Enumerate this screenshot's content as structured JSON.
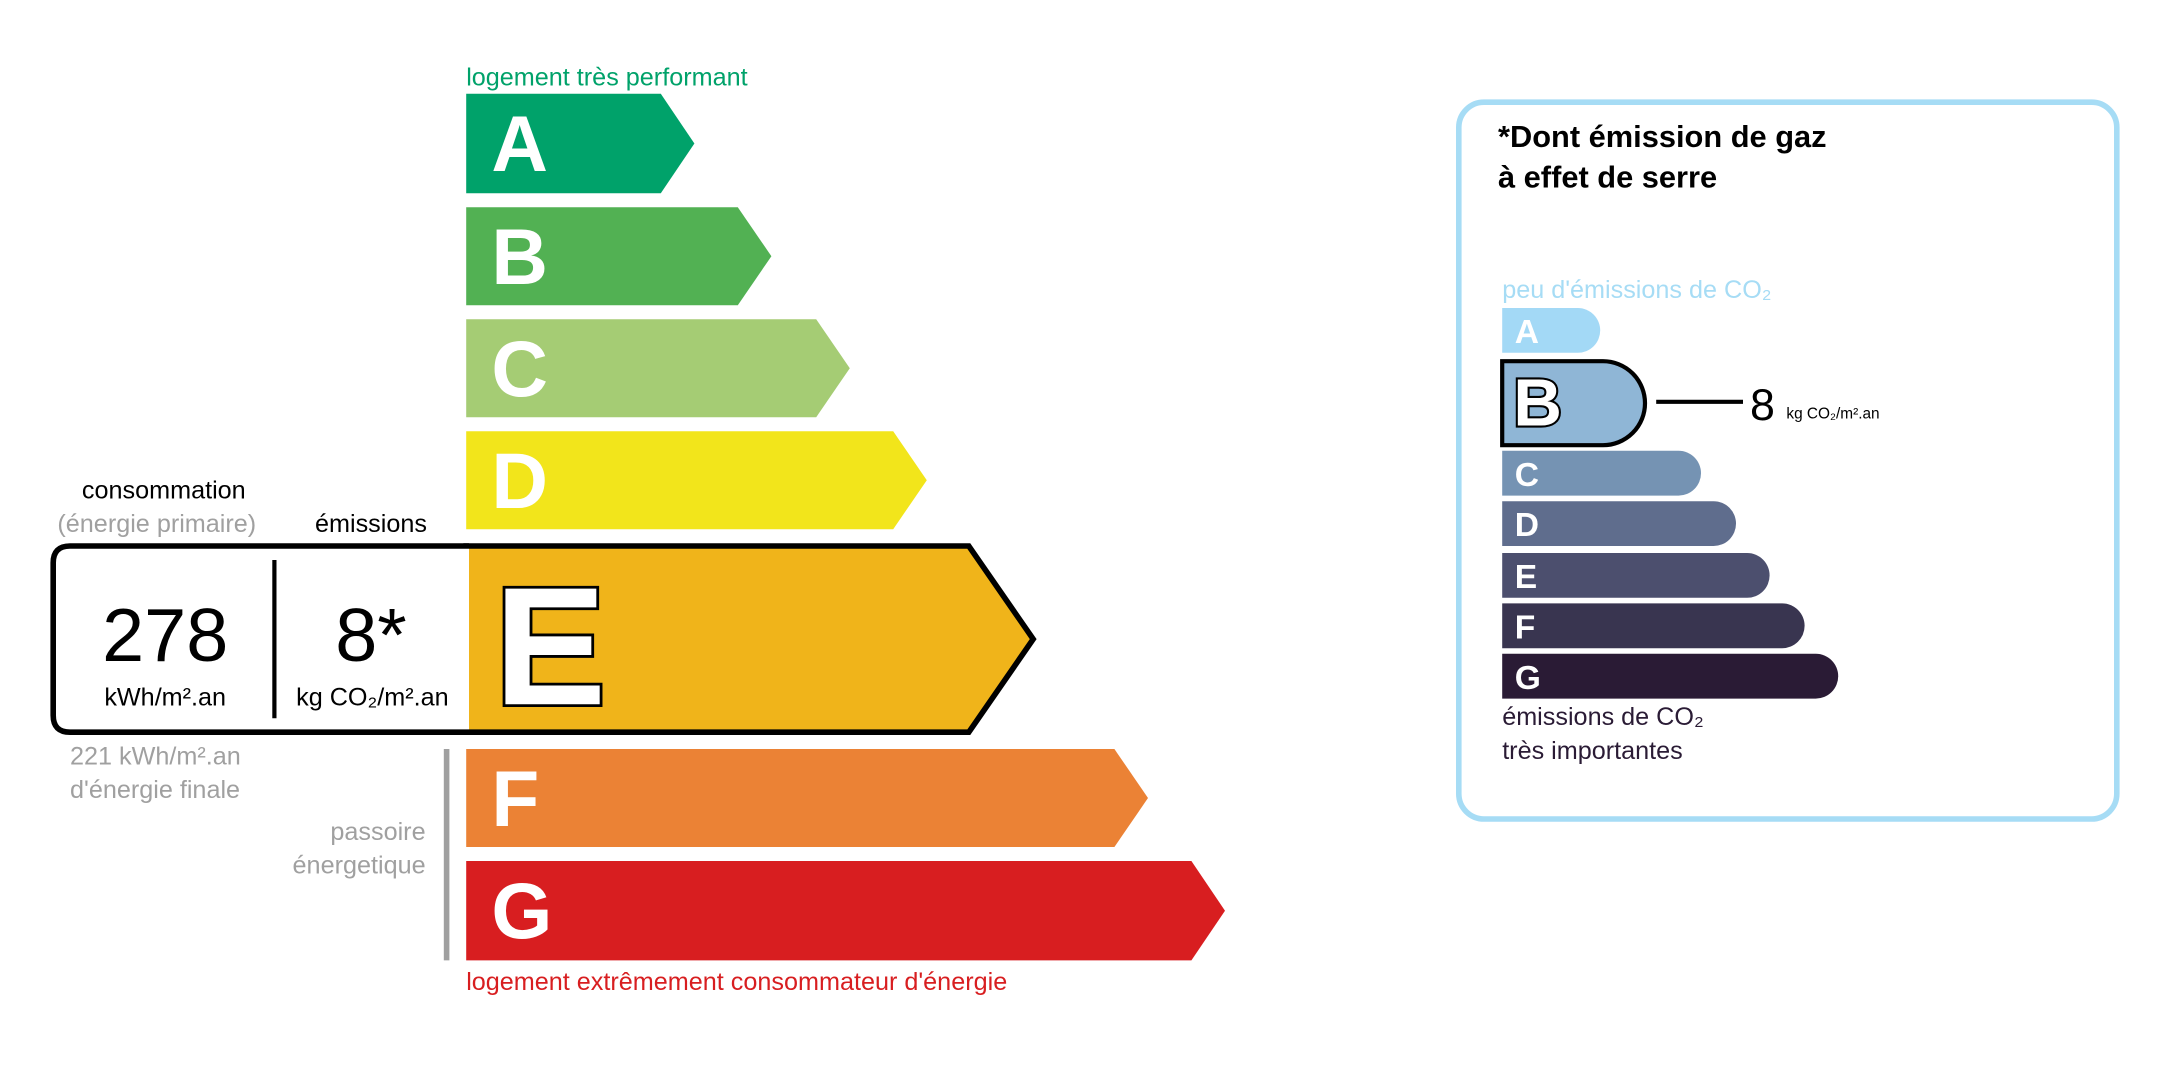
{
  "energy": {
    "top_label": "logement très performant",
    "bottom_label": "logement extrêmement consommateur d'énergie",
    "top_label_color": "#00a26a",
    "bottom_label_color": "#d81e20",
    "classes": [
      {
        "letter": "A",
        "color": "#00a26a"
      },
      {
        "letter": "B",
        "color": "#52b153"
      },
      {
        "letter": "C",
        "color": "#a5cc74"
      },
      {
        "letter": "D",
        "color": "#f2e51b"
      },
      {
        "letter": "E",
        "color": "#f0b41a"
      },
      {
        "letter": "F",
        "color": "#eb8235"
      },
      {
        "letter": "G",
        "color": "#d81e20"
      }
    ],
    "current_class": "E",
    "consumption_header": "consommation",
    "consumption_subheader": "(énergie primaire)",
    "emissions_header": "émissions",
    "consumption_value": "278",
    "consumption_unit": "kWh/m².an",
    "emissions_value": "8*",
    "emissions_unit": "kg CO₂/m².an",
    "final_energy_line1": "221 kWh/m².an",
    "final_energy_line2": "d'énergie finale",
    "passoire_line1": "passoire",
    "passoire_line2": "énergetique"
  },
  "ghg": {
    "title_line1": "*Dont émission de gaz",
    "title_line2": "à effet de serre",
    "top_label": "peu d'émissions de CO₂",
    "bottom_label_line1": "émissions de CO₂",
    "bottom_label_line2": "très importantes",
    "border_color": "#a6dcf5",
    "classes": [
      {
        "letter": "A",
        "color": "#a3d9f6"
      },
      {
        "letter": "B",
        "color": "#8fb6d6"
      },
      {
        "letter": "C",
        "color": "#7593b3"
      },
      {
        "letter": "D",
        "color": "#5f6d8d"
      },
      {
        "letter": "E",
        "color": "#4c4f6e"
      },
      {
        "letter": "F",
        "color": "#393550"
      },
      {
        "letter": "G",
        "color": "#2a1b35"
      }
    ],
    "current_class": "B",
    "value": "8",
    "unit": "kg CO₂/m².an"
  }
}
